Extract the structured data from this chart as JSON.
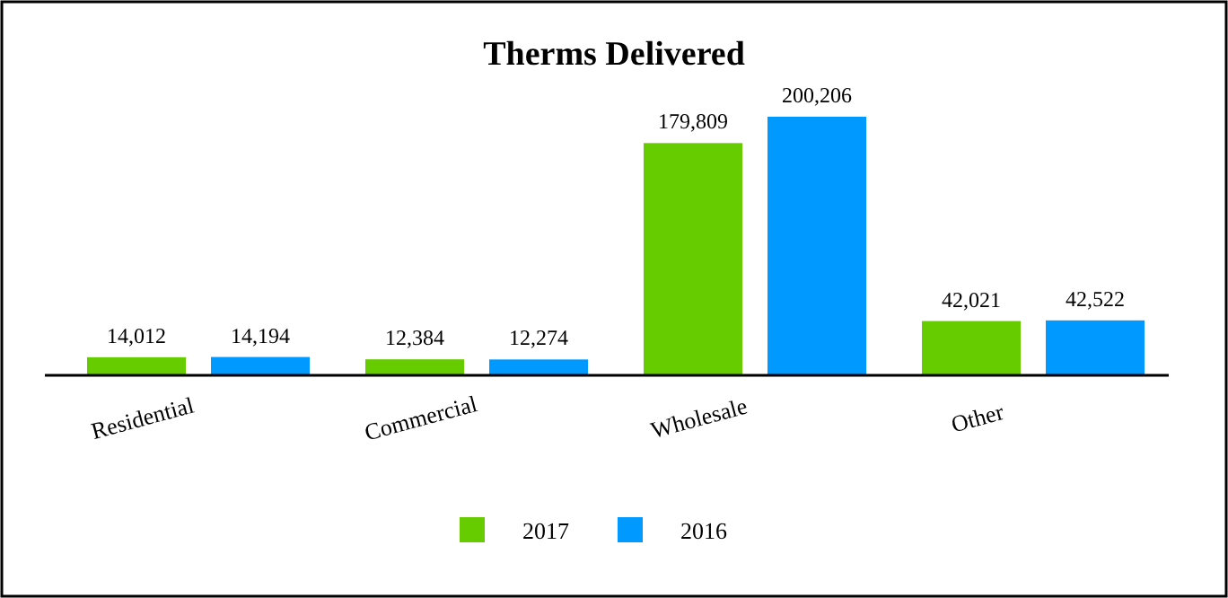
{
  "chart_data": {
    "type": "bar",
    "title": "Therms Delivered",
    "categories": [
      "Residential",
      "Commercial",
      "Wholesale",
      "Other"
    ],
    "series": [
      {
        "name": "2017",
        "color": "#66cc00",
        "values": [
          14012,
          12384,
          179809,
          42021
        ],
        "value_labels": [
          "14,012",
          "12,384",
          "179,809",
          "42,021"
        ]
      },
      {
        "name": "2016",
        "color": "#0099ff",
        "values": [
          14194,
          12274,
          200206,
          42522
        ],
        "value_labels": [
          "14,194",
          "12,274",
          "200,206",
          "42,522"
        ]
      }
    ],
    "legend": "bottom"
  }
}
